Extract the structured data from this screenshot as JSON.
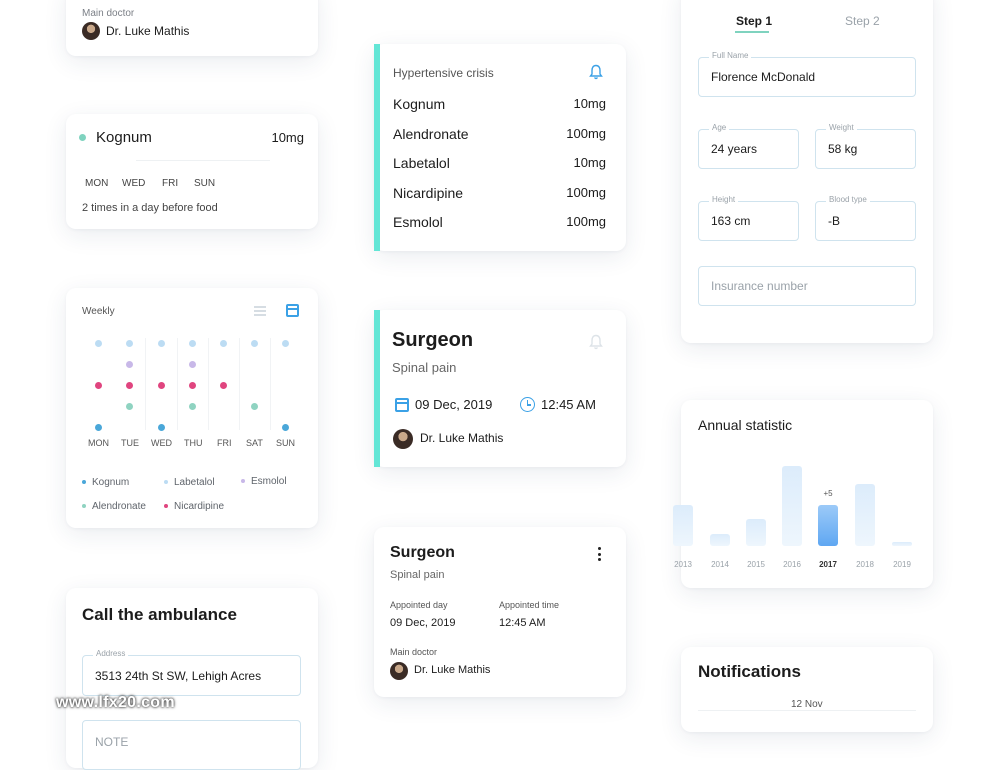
{
  "doctor_card_top": {
    "label": "Main doctor",
    "doctor": "Dr. Luke Mathis"
  },
  "med_card": {
    "name": "Kognum",
    "dose": "10mg",
    "days": [
      "MON",
      "WED",
      "FRI",
      "SUN"
    ],
    "instructions": "2 times in a day before food",
    "dot_color": "#7fd3bf"
  },
  "weekly": {
    "title": "Weekly",
    "days": [
      "MON",
      "TUE",
      "WED",
      "THU",
      "FRI",
      "SAT",
      "SUN"
    ],
    "legend": [
      {
        "name": "Kognum",
        "color": "#4aa7d9"
      },
      {
        "name": "Labetalol",
        "color": "#bcdcf3"
      },
      {
        "name": "Esmolol",
        "color": "#c8b8e8"
      },
      {
        "name": "Alendronate",
        "color": "#8fd3c1"
      },
      {
        "name": "Nicardipine",
        "color": "#e0457f"
      }
    ],
    "icons": {
      "list": "list-icon",
      "calendar": "calendar-icon"
    }
  },
  "ambulance": {
    "title": "Call the ambulance",
    "address_label": "Address",
    "address_value": "3513 24th St SW, Lehigh Acres",
    "note_placeholder": "NOTE"
  },
  "crisis": {
    "title": "Hypertensive crisis",
    "items": [
      {
        "name": "Kognum",
        "dose": "10mg"
      },
      {
        "name": "Alendronate",
        "dose": "100mg"
      },
      {
        "name": "Labetalol",
        "dose": "10mg"
      },
      {
        "name": "Nicardipine",
        "dose": "100mg"
      },
      {
        "name": "Esmolol",
        "dose": "100mg"
      }
    ],
    "accent": "#63e6d6"
  },
  "surgeon1": {
    "title": "Surgeon",
    "subtitle": "Spinal pain",
    "date": "09 Dec, 2019",
    "time": "12:45 AM",
    "doctor": "Dr. Luke Mathis"
  },
  "surgeon2": {
    "title": "Surgeon",
    "subtitle": "Spinal pain",
    "day_label": "Appointed day",
    "day_value": "09 Dec, 2019",
    "time_label": "Appointed time",
    "time_value": "12:45 AM",
    "doctor_label": "Main doctor",
    "doctor": "Dr. Luke Mathis"
  },
  "form": {
    "step1": "Step 1",
    "step2": "Step 2",
    "full_name_label": "Full Name",
    "full_name": "Florence McDonald",
    "age_label": "Age",
    "age": "24 years",
    "weight_label": "Weight",
    "weight": "58 kg",
    "height_label": "Height",
    "height": "163 cm",
    "blood_label": "Blood type",
    "blood": "-B",
    "insurance_placeholder": "Insurance number"
  },
  "annual": {
    "title": "Annual statistic",
    "badge": "+5"
  },
  "chart_data": {
    "type": "bar",
    "title": "Annual statistic",
    "categories": [
      "2013",
      "2014",
      "2015",
      "2016",
      "2017",
      "2018",
      "2019"
    ],
    "values": [
      40,
      12,
      26,
      78,
      40,
      60,
      4
    ],
    "highlight": "2017",
    "annotation": "+5"
  },
  "notifications": {
    "title": "Notifications",
    "date": "12 Nov"
  },
  "watermark": "www.lfx20.com"
}
